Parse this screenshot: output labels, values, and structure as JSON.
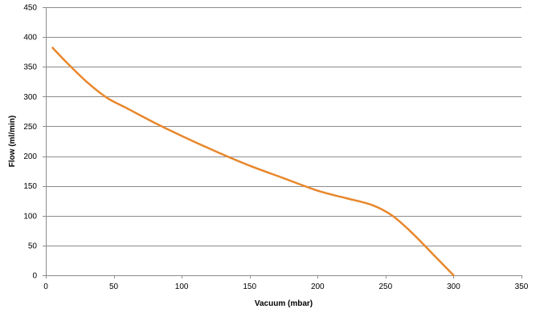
{
  "chart_data": {
    "type": "line",
    "title": "",
    "xlabel": "Vacuum (mbar)",
    "ylabel": "Flow (ml/min)",
    "xlim": [
      0,
      350
    ],
    "ylim": [
      0,
      450
    ],
    "xticks": [
      0,
      50,
      100,
      150,
      200,
      250,
      300,
      350
    ],
    "yticks": [
      0,
      50,
      100,
      150,
      200,
      250,
      300,
      350,
      400,
      450
    ],
    "grid": "horizontal",
    "legend": "none",
    "series": [
      {
        "color": "#E8872B",
        "x": [
          5,
          15,
          30,
          45,
          60,
          80,
          100,
          125,
          150,
          175,
          200,
          220,
          240,
          255,
          270,
          285,
          300
        ],
        "y": [
          382,
          358,
          325,
          298,
          280,
          256,
          234,
          208,
          184,
          163,
          142,
          130,
          118,
          100,
          70,
          35,
          0
        ]
      }
    ]
  }
}
